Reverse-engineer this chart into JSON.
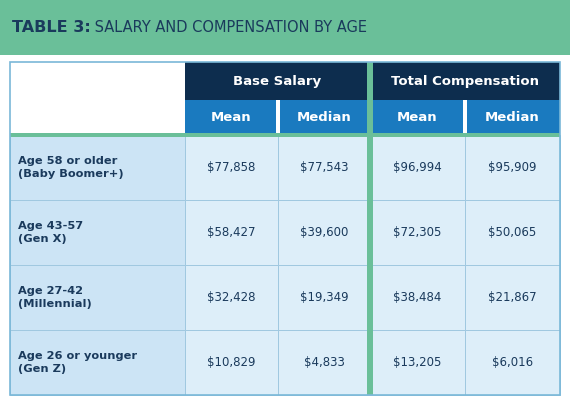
{
  "title_bold": "TABLE 3:",
  "title_regular": " SALARY AND COMPENSATION BY AGE",
  "title_bg": "#6abf99",
  "header1_bg": "#0d2d4e",
  "header2_bg": "#1a7abf",
  "row_bg": "#cce4f5",
  "data_bg": "#ddeef9",
  "divider_color": "#6abf99",
  "col_groups": [
    "Base Salary",
    "Total Compensation"
  ],
  "col_headers": [
    "Mean",
    "Median",
    "Mean",
    "Median"
  ],
  "row_labels": [
    "Age 58 or older\n(Baby Boomer+)",
    "Age 43-57\n(Gen X)",
    "Age 27-42\n(Millennial)",
    "Age 26 or younger\n(Gen Z)"
  ],
  "data": [
    [
      "$77,858",
      "$77,543",
      "$96,994",
      "$95,909"
    ],
    [
      "$58,427",
      "$39,600",
      "$72,305",
      "$50,065"
    ],
    [
      "$32,428",
      "$19,349",
      "$38,484",
      "$21,867"
    ],
    [
      "$10,829",
      "$4,833",
      "$13,205",
      "$6,016"
    ]
  ],
  "header_text_color": "#ffffff",
  "row_label_color": "#1a3a5c",
  "data_text_color": "#1a3a5c",
  "border_color": "#a0c8e0",
  "outer_border_color": "#7ab8d8",
  "fig_width": 5.7,
  "fig_height": 3.97,
  "dpi": 100
}
